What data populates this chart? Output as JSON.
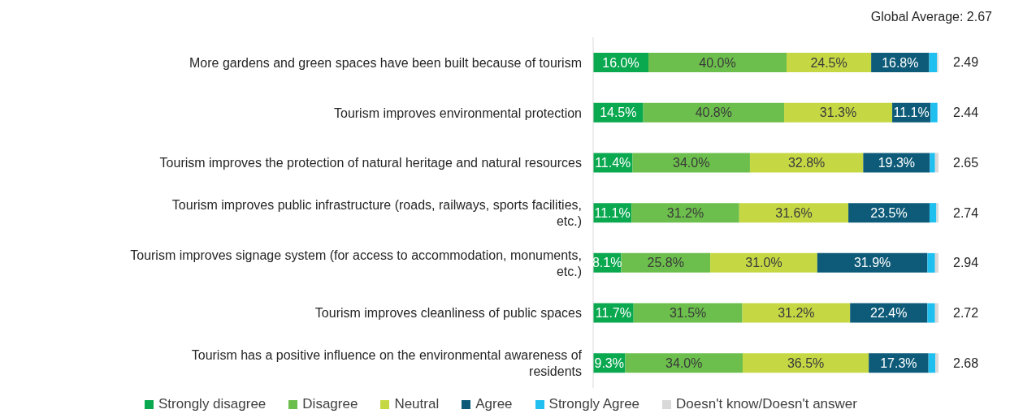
{
  "chart_data": {
    "type": "bar",
    "orientation": "horizontal",
    "stacked": true,
    "categories": [
      "More gardens and green spaces have been built because of tourism",
      "Tourism improves environmental protection",
      "Tourism improves the protection of natural heritage and natural resources",
      "Tourism improves public infrastructure (roads, railways, sports facilities, etc.)",
      "Tourism improves signage system (for access to accommodation, monuments, etc.)",
      "Tourism improves cleanliness of public spaces",
      "Tourism has a positive influence on the environmental awareness of residents"
    ],
    "xlim": [
      0,
      100
    ],
    "tick_labels": "y",
    "grid": false,
    "legend": "bottom",
    "series": [
      {
        "name": "Strongly disagree",
        "color": "#0aa84f",
        "values": [
          16.0,
          14.5,
          11.4,
          11.1,
          8.1,
          11.7,
          9.3
        ],
        "value_labels": [
          "16.0%",
          "14.5%",
          "11.4%",
          "11.1%",
          "8.1%",
          "11.7%",
          "9.3%"
        ]
      },
      {
        "name": "Disagree",
        "color": "#6cbf4c",
        "values": [
          40.0,
          40.8,
          34.0,
          31.2,
          25.8,
          31.5,
          34.0
        ],
        "value_labels": [
          "40.0%",
          "40.8%",
          "34.0%",
          "31.2%",
          "25.8%",
          "31.5%",
          "34.0%"
        ]
      },
      {
        "name": "Neutral",
        "color": "#c5d844",
        "values": [
          24.5,
          31.3,
          32.8,
          31.6,
          31.0,
          31.2,
          36.5
        ],
        "value_labels": [
          "24.5%",
          "31.3%",
          "32.8%",
          "31.6%",
          "31.0%",
          "31.2%",
          "36.5%"
        ]
      },
      {
        "name": "Agree",
        "color": "#0d5b78",
        "values": [
          16.8,
          11.1,
          19.3,
          23.5,
          31.9,
          22.4,
          17.3
        ],
        "value_labels": [
          "16.8%",
          "11.1%",
          "19.3%",
          "23.5%",
          "31.9%",
          "22.4%",
          "17.3%"
        ]
      },
      {
        "name": "Strongly Agree",
        "color": "#1fbff0",
        "values": [
          2.3,
          2.0,
          1.5,
          2.0,
          2.2,
          2.2,
          2.0
        ],
        "value_labels": [
          null,
          null,
          null,
          null,
          null,
          null,
          null
        ]
      },
      {
        "name": "Doesn't know/Doesn't answer",
        "color": "#d9d9d9",
        "values": [
          0.4,
          null,
          1.0,
          0.6,
          1.0,
          1.0,
          0.9
        ],
        "value_labels": [
          null,
          null,
          null,
          null,
          null,
          null,
          null
        ]
      }
    ],
    "annotations": [
      "Global Average: 2.67",
      "2.49",
      "2.44",
      "2.65",
      "2.74",
      "2.94",
      "2.72",
      "2.68"
    ]
  }
}
